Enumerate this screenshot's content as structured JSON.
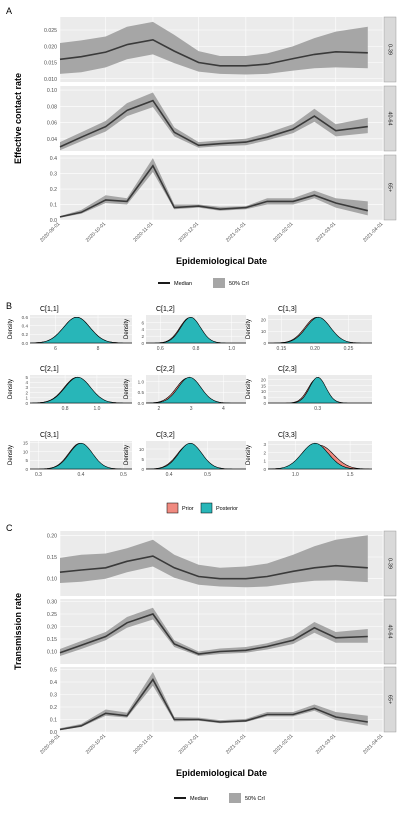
{
  "panel_labels": {
    "a": "A",
    "b": "B",
    "c": "C"
  },
  "legend": {
    "median": "Median",
    "ci": "50% CrI",
    "prior": "Prior",
    "posterior": "Posterior"
  },
  "colors": {
    "ribbon": "#a6a6a6",
    "median": "#3a3a3a",
    "prior": "#f08a80",
    "posterior": "#28b6b8",
    "panel_bg": "#ebebeb",
    "strip_bg": "#d9d9d9"
  },
  "chart_data": [
    {
      "type": "line",
      "title": "",
      "xlabel": "Epidemiological Date",
      "ylabel": "Effective contact rate",
      "x_ticks": [
        "2020-09-01",
        "2020-10-01",
        "2020-11-01",
        "2020-12-01",
        "2021-01-01",
        "2021-02-01",
        "2021-03-01",
        "2021-04-01"
      ],
      "x": [
        "2020-09-01",
        "2020-09-15",
        "2020-10-01",
        "2020-10-15",
        "2020-11-01",
        "2020-11-15",
        "2020-12-01",
        "2020-12-15",
        "2021-01-01",
        "2021-01-15",
        "2021-02-01",
        "2021-02-15",
        "2021-03-01",
        "2021-03-22"
      ],
      "facets": [
        {
          "label": "0-39",
          "ylim": [
            0.009,
            0.029
          ],
          "yticks": [
            "0.010",
            "0.015",
            "0.020",
            "0.025"
          ],
          "median": [
            0.016,
            0.0168,
            0.0182,
            0.0205,
            0.022,
            0.0185,
            0.015,
            0.014,
            0.014,
            0.0145,
            0.0162,
            0.0175,
            0.0183,
            0.018
          ],
          "lower": [
            0.0115,
            0.012,
            0.0135,
            0.016,
            0.0175,
            0.0148,
            0.0122,
            0.0115,
            0.0113,
            0.0115,
            0.0125,
            0.0132,
            0.0135,
            0.0132
          ],
          "upper": [
            0.021,
            0.0218,
            0.023,
            0.026,
            0.0275,
            0.0235,
            0.0185,
            0.017,
            0.017,
            0.0178,
            0.02,
            0.0225,
            0.0245,
            0.026
          ]
        },
        {
          "label": "40-64",
          "ylim": [
            0.025,
            0.105
          ],
          "yticks": [
            "0.02",
            "0.04",
            "0.06",
            "0.08",
            "0.10"
          ],
          "median": [
            0.03,
            0.042,
            0.055,
            0.075,
            0.087,
            0.048,
            0.032,
            0.034,
            0.036,
            0.042,
            0.052,
            0.068,
            0.05,
            0.055
          ],
          "lower": [
            0.026,
            0.037,
            0.049,
            0.068,
            0.079,
            0.043,
            0.029,
            0.031,
            0.032,
            0.038,
            0.047,
            0.061,
            0.043,
            0.047
          ],
          "upper": [
            0.036,
            0.048,
            0.062,
            0.084,
            0.097,
            0.054,
            0.036,
            0.038,
            0.04,
            0.047,
            0.058,
            0.077,
            0.058,
            0.066
          ]
        },
        {
          "label": "65+",
          "ylim": [
            0,
            0.42
          ],
          "yticks": [
            "0.0",
            "0.1",
            "0.2",
            "0.3",
            "0.4"
          ],
          "median": [
            0.02,
            0.05,
            0.13,
            0.12,
            0.35,
            0.08,
            0.09,
            0.07,
            0.08,
            0.12,
            0.12,
            0.16,
            0.11,
            0.06
          ],
          "lower": [
            0.015,
            0.04,
            0.11,
            0.1,
            0.31,
            0.07,
            0.08,
            0.06,
            0.07,
            0.1,
            0.1,
            0.14,
            0.08,
            0.03
          ],
          "upper": [
            0.025,
            0.065,
            0.16,
            0.14,
            0.4,
            0.1,
            0.1,
            0.085,
            0.09,
            0.14,
            0.14,
            0.19,
            0.14,
            0.12
          ]
        }
      ]
    },
    {
      "type": "area",
      "title": "",
      "ylabel": "Density",
      "series_names": [
        "Prior",
        "Posterior"
      ],
      "facets": [
        {
          "label": "C[1,1]",
          "xticks": [
            "6",
            "8"
          ],
          "xlim": [
            4.8,
            9.6
          ],
          "mean": 7.0,
          "sd": 0.62,
          "prior_mean": 7.0,
          "prior_sd": 0.62,
          "ymax": 0.65,
          "yticks": [
            "0.0",
            "0.2",
            "0.4",
            "0.6"
          ]
        },
        {
          "label": "C[1,2]",
          "xticks": [
            "0.6",
            "0.8",
            "1.0"
          ],
          "xlim": [
            0.52,
            1.08
          ],
          "mean": 0.77,
          "sd": 0.055,
          "prior_mean": 0.765,
          "prior_sd": 0.056,
          "ymax": 8.2,
          "yticks": [
            "0",
            "2",
            "4",
            "6"
          ]
        },
        {
          "label": "C[1,3]",
          "xticks": [
            "0.15",
            "0.20",
            "0.25"
          ],
          "xlim": [
            0.13,
            0.285
          ],
          "mean": 0.205,
          "sd": 0.018,
          "prior_mean": 0.203,
          "prior_sd": 0.018,
          "ymax": 24,
          "yticks": [
            "0",
            "10",
            "20"
          ]
        },
        {
          "label": "C[2,1]",
          "xticks": [
            "0.8",
            "1.0"
          ],
          "xlim": [
            0.58,
            1.22
          ],
          "mean": 0.88,
          "sd": 0.08,
          "prior_mean": 0.875,
          "prior_sd": 0.08,
          "ymax": 5.4,
          "yticks": [
            "0",
            "1",
            "2",
            "3",
            "4",
            "5"
          ]
        },
        {
          "label": "C[2,2]",
          "xticks": [
            "2",
            "3",
            "4"
          ],
          "xlim": [
            1.6,
            4.7
          ],
          "mean": 2.95,
          "sd": 0.35,
          "prior_mean": 2.9,
          "prior_sd": 0.36,
          "ymax": 1.3,
          "yticks": [
            "0.0",
            "0.5",
            "1.0"
          ]
        },
        {
          "label": "C[2,3]",
          "xticks": [
            "0.3"
          ],
          "xlim": [
            0.19,
            0.42
          ],
          "mean": 0.3,
          "sd": 0.018,
          "prior_mean": 0.298,
          "prior_sd": 0.019,
          "ymax": 24,
          "yticks": [
            "0",
            "5",
            "10",
            "15",
            "20"
          ]
        },
        {
          "label": "C[3,1]",
          "xticks": [
            "0.3",
            "0.4",
            "0.5"
          ],
          "xlim": [
            0.28,
            0.52
          ],
          "mean": 0.4,
          "sd": 0.027,
          "prior_mean": 0.398,
          "prior_sd": 0.027,
          "ymax": 16,
          "yticks": [
            "0",
            "5",
            "10",
            "15"
          ]
        },
        {
          "label": "C[3,2]",
          "xticks": [
            "0.4",
            "0.5"
          ],
          "xlim": [
            0.34,
            0.6
          ],
          "mean": 0.455,
          "sd": 0.03,
          "prior_mean": 0.453,
          "prior_sd": 0.031,
          "ymax": 14,
          "yticks": [
            "0",
            "5",
            "10"
          ]
        },
        {
          "label": "C[3,3]",
          "xticks": [
            "1.0",
            "1.5"
          ],
          "xlim": [
            0.75,
            1.7
          ],
          "mean": 1.18,
          "sd": 0.12,
          "prior_mean": 1.22,
          "prior_sd": 0.13,
          "ymax": 3.4,
          "yticks": [
            "0",
            "1",
            "2",
            "3"
          ]
        }
      ]
    },
    {
      "type": "line",
      "title": "",
      "xlabel": "Epidemiological Date",
      "ylabel": "Transmission rate",
      "x_ticks": [
        "2020-09-01",
        "2020-10-01",
        "2020-11-01",
        "2020-12-01",
        "2021-01-01",
        "2021-02-01",
        "2021-03-01",
        "2021-04-01"
      ],
      "x": [
        "2020-09-01",
        "2020-09-15",
        "2020-10-01",
        "2020-10-15",
        "2020-11-01",
        "2020-11-15",
        "2020-12-01",
        "2020-12-15",
        "2021-01-01",
        "2021-01-15",
        "2021-02-01",
        "2021-02-15",
        "2021-03-01",
        "2021-03-22"
      ],
      "facets": [
        {
          "label": "0-39",
          "ylim": [
            0.06,
            0.21
          ],
          "yticks": [
            "0.10",
            "0.15",
            "0.20"
          ],
          "median": [
            0.115,
            0.12,
            0.125,
            0.14,
            0.152,
            0.125,
            0.105,
            0.1,
            0.1,
            0.105,
            0.117,
            0.125,
            0.13,
            0.125
          ],
          "lower": [
            0.09,
            0.093,
            0.1,
            0.115,
            0.128,
            0.102,
            0.086,
            0.082,
            0.08,
            0.082,
            0.09,
            0.095,
            0.096,
            0.092
          ],
          "upper": [
            0.148,
            0.155,
            0.158,
            0.17,
            0.19,
            0.155,
            0.132,
            0.125,
            0.128,
            0.135,
            0.155,
            0.175,
            0.19,
            0.2
          ]
        },
        {
          "label": "40-64",
          "ylim": [
            0.05,
            0.31
          ],
          "yticks": [
            "0.10",
            "0.15",
            "0.20",
            "0.25",
            "0.30"
          ],
          "median": [
            0.095,
            0.125,
            0.16,
            0.215,
            0.25,
            0.13,
            0.09,
            0.1,
            0.105,
            0.12,
            0.145,
            0.195,
            0.155,
            0.16
          ],
          "lower": [
            0.082,
            0.11,
            0.145,
            0.195,
            0.228,
            0.118,
            0.082,
            0.09,
            0.095,
            0.108,
            0.13,
            0.175,
            0.135,
            0.135
          ],
          "upper": [
            0.11,
            0.142,
            0.178,
            0.238,
            0.275,
            0.145,
            0.1,
            0.112,
            0.118,
            0.133,
            0.162,
            0.218,
            0.178,
            0.19
          ]
        },
        {
          "label": "65+",
          "ylim": [
            0,
            0.52
          ],
          "yticks": [
            "0.0",
            "0.1",
            "0.2",
            "0.3",
            "0.4",
            "0.5"
          ],
          "median": [
            0.02,
            0.05,
            0.15,
            0.13,
            0.42,
            0.1,
            0.1,
            0.08,
            0.09,
            0.14,
            0.14,
            0.19,
            0.12,
            0.08
          ],
          "lower": [
            0.015,
            0.04,
            0.13,
            0.115,
            0.37,
            0.085,
            0.09,
            0.07,
            0.08,
            0.125,
            0.125,
            0.17,
            0.095,
            0.05
          ],
          "upper": [
            0.03,
            0.065,
            0.18,
            0.155,
            0.48,
            0.12,
            0.115,
            0.095,
            0.105,
            0.16,
            0.16,
            0.22,
            0.16,
            0.13
          ]
        }
      ]
    }
  ]
}
